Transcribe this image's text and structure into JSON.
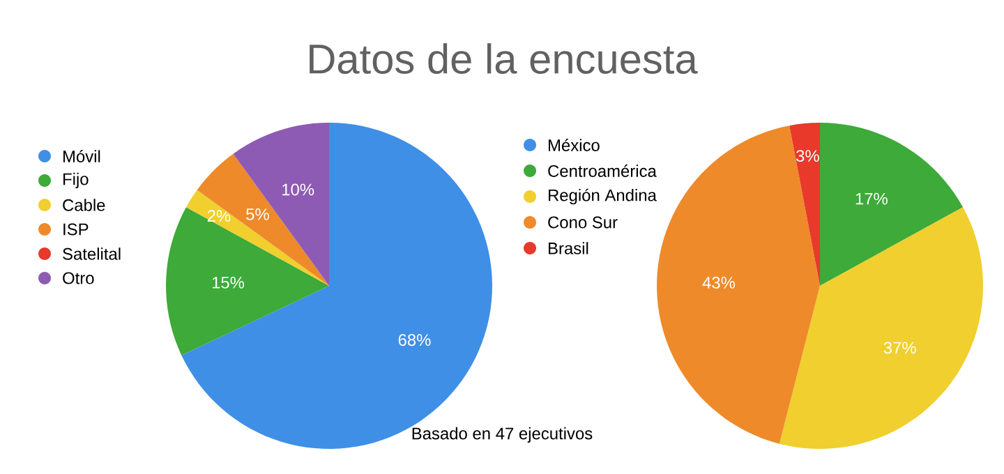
{
  "chart_data": [
    {
      "type": "pie",
      "title": "Datos de la encuesta",
      "annotations": [
        "Basado en 47 ejecutivos"
      ],
      "legend": "left",
      "categories": [
        "Móvil",
        "Fijo",
        "Cable",
        "ISP",
        "Satelital",
        "Otro"
      ],
      "values": [
        68,
        15,
        2,
        5,
        0,
        10
      ],
      "value_labels": [
        "68%",
        "15%",
        "2%",
        "5%",
        null,
        "10%"
      ],
      "colors": [
        "#3f8fe6",
        "#3daa3a",
        "#f0cf2e",
        "#ee8a2a",
        "#e8392a",
        "#8e5bb4"
      ]
    },
    {
      "type": "pie",
      "legend": "left",
      "categories": [
        "México",
        "Centroamérica",
        "Región Andina",
        "Cono Sur",
        "Brasil"
      ],
      "values": [
        0,
        17,
        37,
        43,
        3
      ],
      "value_labels": [
        null,
        "17%",
        "37%",
        "43%",
        "3%"
      ],
      "colors": [
        "#3f8fe6",
        "#3daa3a",
        "#f0cf2e",
        "#ee8a2a",
        "#e8392a"
      ]
    }
  ]
}
